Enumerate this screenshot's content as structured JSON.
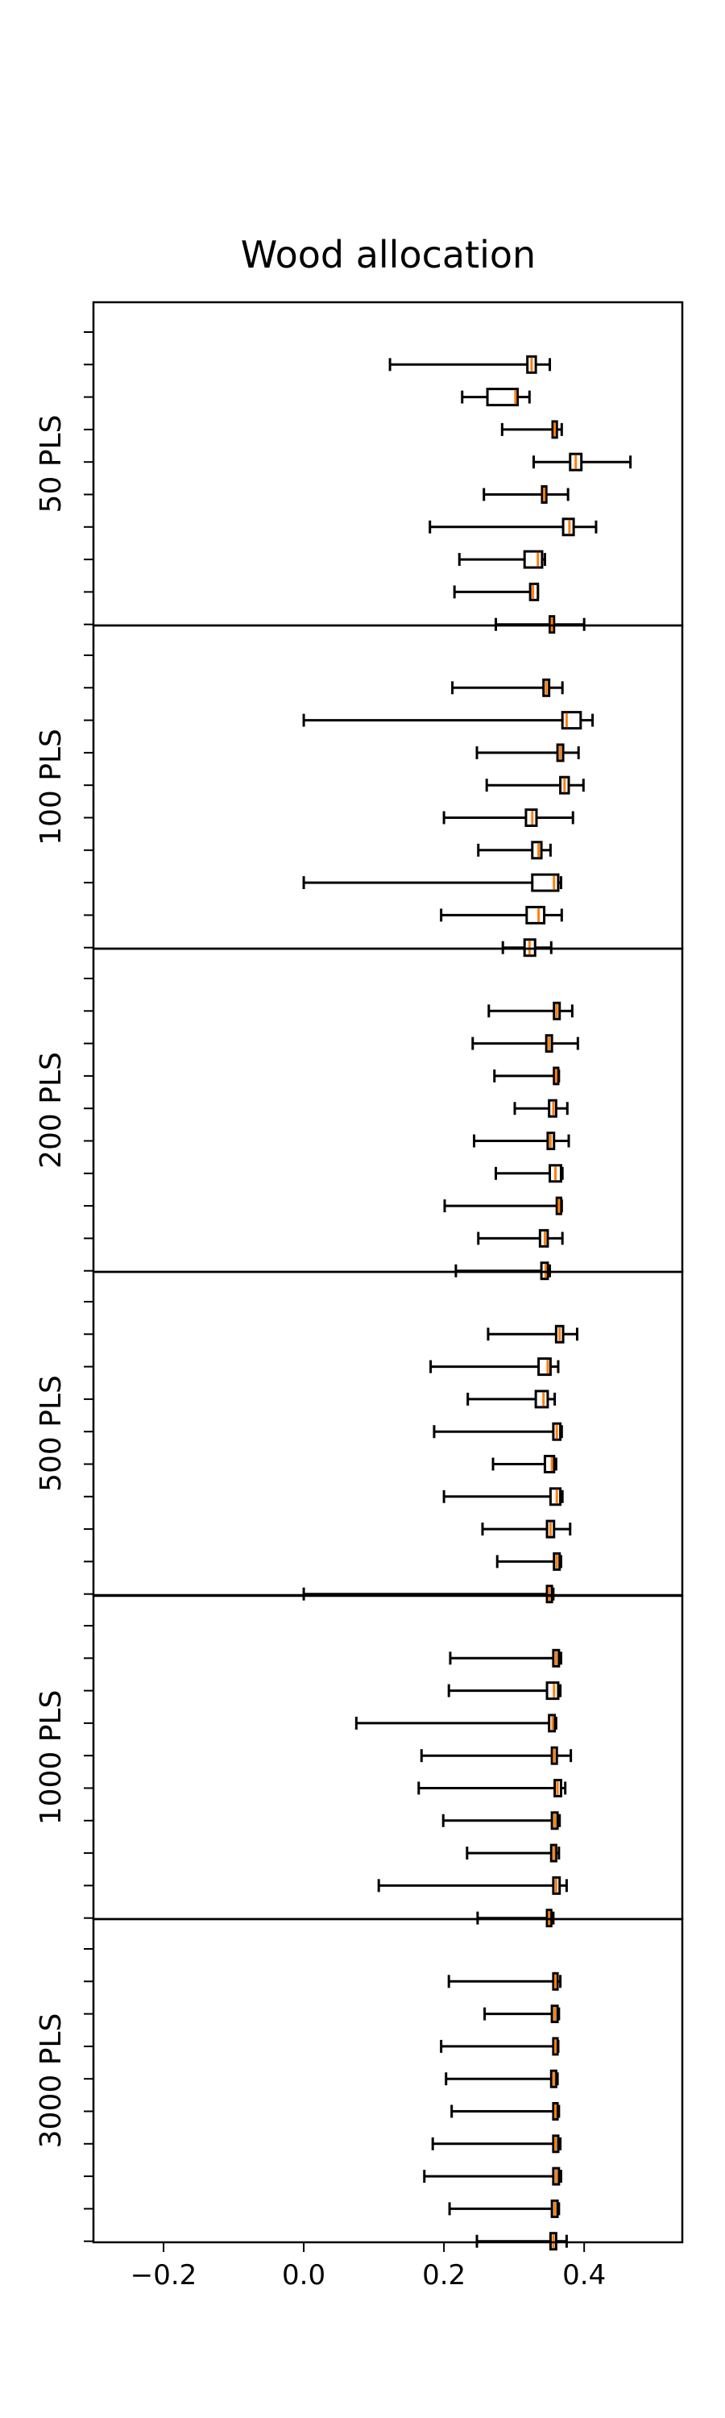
{
  "chart_data": {
    "type": "boxplot",
    "title": "Wood allocation",
    "xticks": [
      -0.2,
      0.0,
      0.2,
      0.4
    ],
    "xtick_labels": [
      "−0.2",
      "0.0",
      "0.2",
      "0.4"
    ],
    "xlim": [
      -0.3,
      0.54
    ],
    "orientation": "horizontal",
    "median_color": "#ff7f0e",
    "panels": [
      {
        "label": "50 PLS",
        "box_label": "50",
        "boxes": [
          {
            "min": 0.123,
            "q1": 0.319,
            "median": 0.325,
            "q3": 0.331,
            "max": 0.351
          },
          {
            "min": 0.226,
            "q1": 0.262,
            "median": 0.302,
            "q3": 0.305,
            "max": 0.322
          },
          {
            "min": 0.283,
            "q1": 0.355,
            "median": 0.358,
            "q3": 0.361,
            "max": 0.368
          },
          {
            "min": 0.328,
            "q1": 0.38,
            "median": 0.388,
            "q3": 0.396,
            "max": 0.466
          },
          {
            "min": 0.257,
            "q1": 0.34,
            "median": 0.343,
            "q3": 0.346,
            "max": 0.377
          },
          {
            "min": 0.18,
            "q1": 0.37,
            "median": 0.379,
            "q3": 0.385,
            "max": 0.417
          },
          {
            "min": 0.222,
            "q1": 0.315,
            "median": 0.334,
            "q3": 0.34,
            "max": 0.344
          },
          {
            "min": 0.215,
            "q1": 0.323,
            "median": 0.327,
            "q3": 0.334,
            "max": 0.334
          },
          {
            "min": 0.274,
            "q1": 0.351,
            "median": 0.354,
            "q3": 0.357,
            "max": 0.4
          }
        ]
      },
      {
        "label": "100 PLS",
        "box_label": "100",
        "boxes": [
          {
            "min": 0.212,
            "q1": 0.342,
            "median": 0.346,
            "q3": 0.35,
            "max": 0.369
          },
          {
            "min": 0.0,
            "q1": 0.369,
            "median": 0.375,
            "q3": 0.395,
            "max": 0.412
          },
          {
            "min": 0.247,
            "q1": 0.362,
            "median": 0.366,
            "q3": 0.37,
            "max": 0.392
          },
          {
            "min": 0.261,
            "q1": 0.366,
            "median": 0.372,
            "q3": 0.378,
            "max": 0.399
          },
          {
            "min": 0.2,
            "q1": 0.317,
            "median": 0.326,
            "q3": 0.332,
            "max": 0.384
          },
          {
            "min": 0.249,
            "q1": 0.326,
            "median": 0.335,
            "q3": 0.339,
            "max": 0.352
          },
          {
            "min": 0.0,
            "q1": 0.326,
            "median": 0.357,
            "q3": 0.363,
            "max": 0.367
          },
          {
            "min": 0.196,
            "q1": 0.318,
            "median": 0.335,
            "q3": 0.343,
            "max": 0.368
          },
          {
            "min": 0.284,
            "q1": 0.315,
            "median": 0.322,
            "q3": 0.33,
            "max": 0.353
          }
        ]
      },
      {
        "label": "200 PLS",
        "box_label": "200",
        "boxes": [
          {
            "min": 0.264,
            "q1": 0.357,
            "median": 0.361,
            "q3": 0.365,
            "max": 0.383
          },
          {
            "min": 0.241,
            "q1": 0.346,
            "median": 0.35,
            "q3": 0.354,
            "max": 0.391
          },
          {
            "min": 0.272,
            "q1": 0.357,
            "median": 0.36,
            "q3": 0.363,
            "max": 0.364
          },
          {
            "min": 0.301,
            "q1": 0.35,
            "median": 0.356,
            "q3": 0.36,
            "max": 0.376
          },
          {
            "min": 0.243,
            "q1": 0.348,
            "median": 0.352,
            "q3": 0.357,
            "max": 0.378
          },
          {
            "min": 0.274,
            "q1": 0.351,
            "median": 0.359,
            "q3": 0.367,
            "max": 0.369
          },
          {
            "min": 0.201,
            "q1": 0.361,
            "median": 0.364,
            "q3": 0.367,
            "max": 0.368
          },
          {
            "min": 0.249,
            "q1": 0.337,
            "median": 0.344,
            "q3": 0.348,
            "max": 0.369
          },
          {
            "min": 0.217,
            "q1": 0.339,
            "median": 0.345,
            "q3": 0.348,
            "max": 0.351
          }
        ]
      },
      {
        "label": "500 PLS",
        "box_label": "500",
        "boxes": [
          {
            "min": 0.263,
            "q1": 0.36,
            "median": 0.365,
            "q3": 0.37,
            "max": 0.39
          },
          {
            "min": 0.181,
            "q1": 0.335,
            "median": 0.348,
            "q3": 0.352,
            "max": 0.363
          },
          {
            "min": 0.234,
            "q1": 0.331,
            "median": 0.342,
            "q3": 0.348,
            "max": 0.358
          },
          {
            "min": 0.186,
            "q1": 0.356,
            "median": 0.361,
            "q3": 0.366,
            "max": 0.368
          },
          {
            "min": 0.27,
            "q1": 0.344,
            "median": 0.354,
            "q3": 0.357,
            "max": 0.36
          },
          {
            "min": 0.2,
            "q1": 0.352,
            "median": 0.361,
            "q3": 0.366,
            "max": 0.369
          },
          {
            "min": 0.255,
            "q1": 0.347,
            "median": 0.352,
            "q3": 0.357,
            "max": 0.38
          },
          {
            "min": 0.276,
            "q1": 0.357,
            "median": 0.361,
            "q3": 0.365,
            "max": 0.367
          },
          {
            "min": 0.0,
            "q1": 0.347,
            "median": 0.35,
            "q3": 0.354,
            "max": 0.356
          }
        ]
      },
      {
        "label": "1000 PLS",
        "box_label": "",
        "boxes": [
          {
            "min": 0.209,
            "q1": 0.356,
            "median": 0.36,
            "q3": 0.364,
            "max": 0.367
          },
          {
            "min": 0.207,
            "q1": 0.347,
            "median": 0.357,
            "q3": 0.363,
            "max": 0.366
          },
          {
            "min": 0.075,
            "q1": 0.35,
            "median": 0.355,
            "q3": 0.358,
            "max": 0.36
          },
          {
            "min": 0.168,
            "q1": 0.354,
            "median": 0.357,
            "q3": 0.361,
            "max": 0.381
          },
          {
            "min": 0.164,
            "q1": 0.358,
            "median": 0.362,
            "q3": 0.367,
            "max": 0.373
          },
          {
            "min": 0.199,
            "q1": 0.354,
            "median": 0.358,
            "q3": 0.362,
            "max": 0.365
          },
          {
            "min": 0.233,
            "q1": 0.353,
            "median": 0.357,
            "q3": 0.36,
            "max": 0.364
          },
          {
            "min": 0.107,
            "q1": 0.356,
            "median": 0.36,
            "q3": 0.365,
            "max": 0.375
          },
          {
            "min": 0.248,
            "q1": 0.347,
            "median": 0.35,
            "q3": 0.353,
            "max": 0.356
          }
        ]
      },
      {
        "label": "3000 PLS",
        "box_label": "",
        "boxes": [
          {
            "min": 0.207,
            "q1": 0.356,
            "median": 0.359,
            "q3": 0.362,
            "max": 0.366
          },
          {
            "min": 0.258,
            "q1": 0.354,
            "median": 0.358,
            "q3": 0.362,
            "max": 0.364
          },
          {
            "min": 0.196,
            "q1": 0.356,
            "median": 0.359,
            "q3": 0.362,
            "max": 0.363
          },
          {
            "min": 0.203,
            "q1": 0.353,
            "median": 0.357,
            "q3": 0.36,
            "max": 0.362
          },
          {
            "min": 0.211,
            "q1": 0.356,
            "median": 0.359,
            "q3": 0.362,
            "max": 0.364
          },
          {
            "min": 0.184,
            "q1": 0.356,
            "median": 0.359,
            "q3": 0.363,
            "max": 0.366
          },
          {
            "min": 0.172,
            "q1": 0.356,
            "median": 0.36,
            "q3": 0.364,
            "max": 0.367
          },
          {
            "min": 0.208,
            "q1": 0.354,
            "median": 0.358,
            "q3": 0.362,
            "max": 0.364
          },
          {
            "min": 0.247,
            "q1": 0.352,
            "median": 0.356,
            "q3": 0.36,
            "max": 0.375
          }
        ]
      }
    ]
  }
}
